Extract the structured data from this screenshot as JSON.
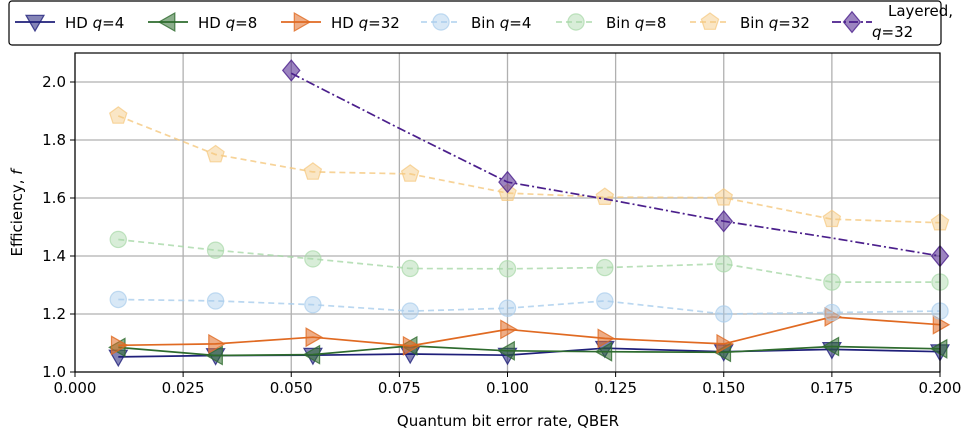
{
  "chart_data": {
    "type": "line",
    "xlabel": "Quantum bit error rate, QBER",
    "ylabel": "Efficiency, f",
    "xlim": [
      0.0,
      0.2
    ],
    "ylim": [
      1.0,
      2.1
    ],
    "xticks": [
      "0.000",
      "0.025",
      "0.050",
      "0.075",
      "0.100",
      "0.125",
      "0.150",
      "0.175",
      "0.200"
    ],
    "yticks": [
      "1.0",
      "1.2",
      "1.4",
      "1.6",
      "1.8",
      "2.0"
    ],
    "grid": true,
    "legend_position": "top, outside plot",
    "series": [
      {
        "name": "HD q=4",
        "name_parts": [
          "HD ",
          "q",
          "=4"
        ],
        "color": "#1f1f7a",
        "marker": "triangle-down",
        "linestyle": "solid",
        "opacity": "solid",
        "x": [
          0.01,
          0.0325,
          0.055,
          0.0775,
          0.1,
          0.1225,
          0.15,
          0.175,
          0.2
        ],
        "y": [
          1.052,
          1.057,
          1.058,
          1.062,
          1.058,
          1.082,
          1.07,
          1.078,
          1.07
        ]
      },
      {
        "name": "HD q=8",
        "name_parts": [
          "HD ",
          "q",
          "=8"
        ],
        "color": "#2e6b2e",
        "marker": "triangle-left",
        "linestyle": "solid",
        "opacity": "solid",
        "x": [
          0.01,
          0.0325,
          0.055,
          0.0775,
          0.1,
          0.1225,
          0.15,
          0.175,
          0.2
        ],
        "y": [
          1.085,
          1.057,
          1.06,
          1.09,
          1.073,
          1.07,
          1.068,
          1.088,
          1.08
        ]
      },
      {
        "name": "HD q=32",
        "name_parts": [
          "HD ",
          "q",
          "=32"
        ],
        "color": "#e06a22",
        "marker": "triangle-right",
        "linestyle": "solid",
        "opacity": "solid",
        "x": [
          0.01,
          0.0325,
          0.055,
          0.0775,
          0.1,
          0.1225,
          0.15,
          0.175,
          0.2
        ],
        "y": [
          1.092,
          1.097,
          1.12,
          1.09,
          1.147,
          1.116,
          1.097,
          1.19,
          1.163
        ]
      },
      {
        "name": "Bin q=4",
        "name_parts": [
          "Bin ",
          "q",
          "=4"
        ],
        "color": "#a9cdec",
        "marker": "circle",
        "linestyle": "dashed",
        "opacity": "faded",
        "x": [
          0.01,
          0.0325,
          0.055,
          0.0775,
          0.1,
          0.1225,
          0.15,
          0.175,
          0.2
        ],
        "y": [
          1.25,
          1.245,
          1.232,
          1.21,
          1.22,
          1.245,
          1.2,
          1.205,
          1.21
        ]
      },
      {
        "name": "Bin q=8",
        "name_parts": [
          "Bin ",
          "q",
          "=8"
        ],
        "color": "#a8d8a8",
        "marker": "circle",
        "linestyle": "dashed",
        "opacity": "faded",
        "x": [
          0.01,
          0.0325,
          0.055,
          0.0775,
          0.1,
          0.1225,
          0.15,
          0.175,
          0.2
        ],
        "y": [
          1.457,
          1.42,
          1.39,
          1.357,
          1.356,
          1.36,
          1.373,
          1.31,
          1.31
        ]
      },
      {
        "name": "Bin q=32",
        "name_parts": [
          "Bin ",
          "q",
          "=32"
        ],
        "color": "#f5c87e",
        "marker": "pentagon",
        "linestyle": "dashed",
        "opacity": "faded",
        "x": [
          0.01,
          0.0325,
          0.055,
          0.0775,
          0.1,
          0.1225,
          0.15,
          0.175,
          0.2
        ],
        "y": [
          1.883,
          1.75,
          1.69,
          1.683,
          1.617,
          1.603,
          1.601,
          1.527,
          1.515
        ]
      },
      {
        "name": "Layered, q=32",
        "name_parts": [
          "Layered,",
          "q",
          "=32"
        ],
        "color": "#4b1f8c",
        "marker": "diamond",
        "linestyle": "dashdot",
        "opacity": "semi",
        "x": [
          0.05,
          0.1,
          0.15,
          0.2
        ],
        "y": [
          2.04,
          1.655,
          1.52,
          1.4
        ],
        "line_x": [
          0.05,
          0.075,
          0.1,
          0.125,
          0.15,
          0.175,
          0.2
        ],
        "line_y": [
          2.03,
          1.84,
          1.655,
          1.59,
          1.52,
          1.462,
          1.4
        ]
      }
    ]
  }
}
